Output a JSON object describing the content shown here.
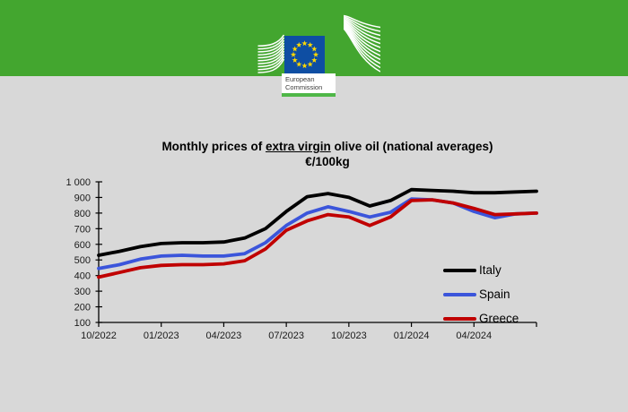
{
  "header": {
    "band_green": "#43A62F",
    "logo": {
      "org_line1": "European",
      "org_line2": "Commission",
      "flag_blue": "#0E4EA3",
      "star_yellow": "#FFD800",
      "bar_green": "#4FB748"
    }
  },
  "chart_data": {
    "type": "line",
    "title_parts": {
      "prefix": "Monthly prices of ",
      "underlined": "extra virgin",
      "suffix": " olive oil (national averages)"
    },
    "subtitle": "€/100kg",
    "x": [
      "10/2022",
      "11/2022",
      "12/2022",
      "01/2023",
      "02/2023",
      "03/2023",
      "04/2023",
      "05/2023",
      "06/2023",
      "07/2023",
      "08/2023",
      "09/2023",
      "10/2023",
      "11/2023",
      "12/2023",
      "01/2024",
      "02/2024",
      "03/2024",
      "04/2024",
      "05/2024",
      "06/2024",
      "07/2024"
    ],
    "x_tick_labels": [
      "10/2022",
      "01/2023",
      "04/2023",
      "07/2023",
      "10/2023",
      "01/2024",
      "04/2024"
    ],
    "x_tick_every": 3,
    "ylim": [
      100,
      1000
    ],
    "y_ticks": [
      100,
      200,
      300,
      400,
      500,
      600,
      700,
      800,
      900,
      1000
    ],
    "y_tick_labels": [
      "100",
      "200",
      "300",
      "400",
      "500",
      "600",
      "700",
      "800",
      "900",
      "1 000"
    ],
    "grid": false,
    "legend_position": "inside-right",
    "series": [
      {
        "name": "Italy",
        "color": "#000000",
        "values": [
          530,
          555,
          585,
          605,
          610,
          610,
          615,
          640,
          700,
          810,
          905,
          925,
          900,
          845,
          880,
          950,
          945,
          940,
          930,
          930,
          935,
          940
        ]
      },
      {
        "name": "Spain",
        "color": "#3B55DB",
        "values": [
          445,
          470,
          505,
          525,
          530,
          525,
          525,
          540,
          610,
          720,
          800,
          840,
          810,
          775,
          805,
          890,
          885,
          865,
          810,
          770,
          795,
          800
        ]
      },
      {
        "name": "Greece",
        "color": "#C00000",
        "values": [
          390,
          420,
          450,
          465,
          470,
          470,
          475,
          495,
          570,
          690,
          750,
          790,
          775,
          720,
          775,
          880,
          885,
          865,
          830,
          790,
          795,
          800
        ]
      }
    ]
  }
}
